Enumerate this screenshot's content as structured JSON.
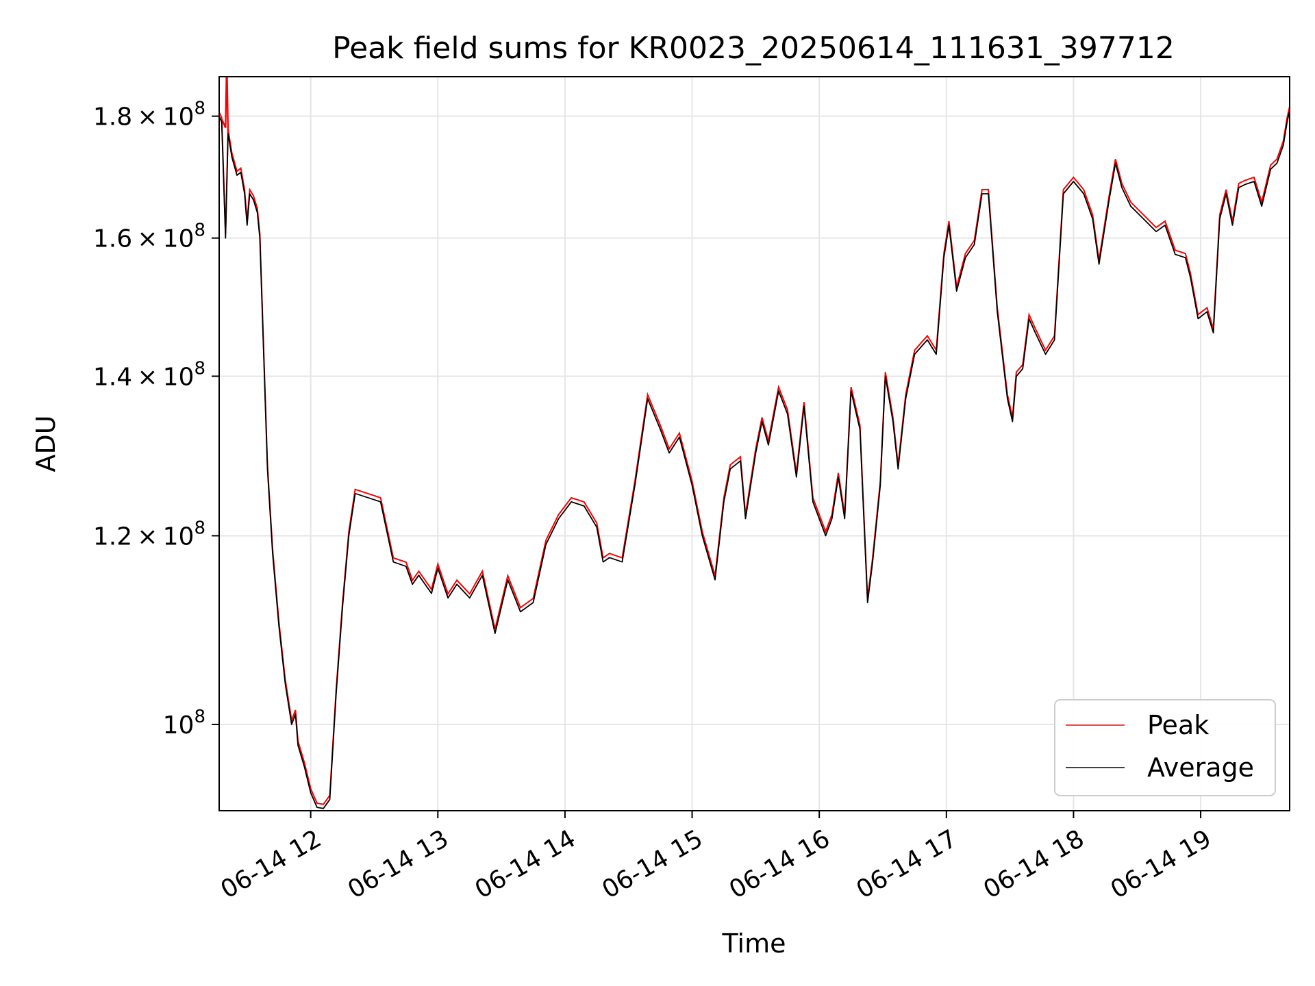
{
  "chart_data": {
    "type": "line",
    "title": "Peak field sums for KR0023_20250614_111631_397712",
    "xlabel": "Time",
    "ylabel": "ADU",
    "yscale": "log",
    "xlim_hours": [
      11.28,
      19.7
    ],
    "ylim": [
      92000000,
      187000000
    ],
    "grid": true,
    "legend_position": "lower right",
    "x_ticks": [
      {
        "label": "06-14 12",
        "hour": 12
      },
      {
        "label": "06-14 13",
        "hour": 13
      },
      {
        "label": "06-14 14",
        "hour": 14
      },
      {
        "label": "06-14 15",
        "hour": 15
      },
      {
        "label": "06-14 16",
        "hour": 16
      },
      {
        "label": "06-14 17",
        "hour": 17
      },
      {
        "label": "06-14 18",
        "hour": 18
      },
      {
        "label": "06-14 19",
        "hour": 19
      }
    ],
    "y_ticks": [
      {
        "value": 100000000,
        "mantissa": "",
        "times": "",
        "base": "10",
        "exponent": "8"
      },
      {
        "value": 120000000,
        "mantissa": "1.2",
        "times": "×",
        "base": "10",
        "exponent": "8"
      },
      {
        "value": 140000000,
        "mantissa": "1.4",
        "times": "×",
        "base": "10",
        "exponent": "8"
      },
      {
        "value": 160000000,
        "mantissa": "1.6",
        "times": "×",
        "base": "10",
        "exponent": "8"
      },
      {
        "value": 180000000,
        "mantissa": "1.8",
        "times": "×",
        "base": "10",
        "exponent": "8"
      }
    ],
    "series": [
      {
        "name": "Peak",
        "color": "#ff0000",
        "points": [
          [
            11.3,
            179.5
          ],
          [
            11.33,
            178
          ],
          [
            11.34,
            190
          ],
          [
            11.35,
            177
          ]
        ]
      },
      {
        "name": "Average",
        "color": "#000000",
        "points": [
          [
            11.28,
            180
          ],
          [
            11.3,
            179
          ],
          [
            11.33,
            160
          ],
          [
            11.35,
            177
          ],
          [
            11.38,
            173
          ],
          [
            11.42,
            170
          ],
          [
            11.45,
            170.5
          ],
          [
            11.48,
            167
          ],
          [
            11.5,
            162
          ],
          [
            11.52,
            167
          ],
          [
            11.55,
            166
          ],
          [
            11.58,
            164
          ],
          [
            11.6,
            160
          ],
          [
            11.63,
            143
          ],
          [
            11.66,
            128
          ],
          [
            11.7,
            118
          ],
          [
            11.75,
            110
          ],
          [
            11.8,
            104
          ],
          [
            11.85,
            100
          ],
          [
            11.88,
            101
          ],
          [
            11.9,
            98
          ],
          [
            11.95,
            96
          ],
          [
            12.0,
            93.6
          ],
          [
            12.05,
            92.3
          ],
          [
            12.1,
            92.2
          ],
          [
            12.15,
            93
          ],
          [
            12.2,
            103
          ],
          [
            12.25,
            112
          ],
          [
            12.3,
            120
          ],
          [
            12.35,
            125
          ],
          [
            12.45,
            124.5
          ],
          [
            12.55,
            124
          ],
          [
            12.65,
            117
          ],
          [
            12.75,
            116.5
          ],
          [
            12.8,
            114.5
          ],
          [
            12.85,
            115.5
          ],
          [
            12.95,
            113.5
          ],
          [
            13.0,
            116.3
          ],
          [
            13.08,
            113
          ],
          [
            13.15,
            114.5
          ],
          [
            13.25,
            113
          ],
          [
            13.35,
            115.5
          ],
          [
            13.45,
            109.2
          ],
          [
            13.55,
            115
          ],
          [
            13.65,
            111.5
          ],
          [
            13.75,
            112.5
          ],
          [
            13.85,
            119
          ],
          [
            13.95,
            122
          ],
          [
            14.05,
            124
          ],
          [
            14.15,
            123.5
          ],
          [
            14.25,
            121
          ],
          [
            14.3,
            117
          ],
          [
            14.35,
            117.5
          ],
          [
            14.45,
            117
          ],
          [
            14.55,
            126
          ],
          [
            14.65,
            137
          ],
          [
            14.75,
            133
          ],
          [
            14.82,
            130
          ],
          [
            14.9,
            132
          ],
          [
            15.0,
            126
          ],
          [
            15.08,
            120
          ],
          [
            15.18,
            115
          ],
          [
            15.25,
            124
          ],
          [
            15.3,
            128
          ],
          [
            15.38,
            129
          ],
          [
            15.42,
            122
          ],
          [
            15.5,
            130
          ],
          [
            15.55,
            134
          ],
          [
            15.6,
            131
          ],
          [
            15.68,
            138
          ],
          [
            15.75,
            135
          ],
          [
            15.82,
            127
          ],
          [
            15.88,
            136
          ],
          [
            15.95,
            124
          ],
          [
            16.05,
            120
          ],
          [
            16.1,
            122
          ],
          [
            16.15,
            127
          ],
          [
            16.2,
            122
          ],
          [
            16.25,
            138
          ],
          [
            16.32,
            133
          ],
          [
            16.38,
            112.5
          ],
          [
            16.42,
            117
          ],
          [
            16.48,
            126
          ],
          [
            16.52,
            140
          ],
          [
            16.58,
            134
          ],
          [
            16.62,
            128
          ],
          [
            16.68,
            137
          ],
          [
            16.75,
            143
          ],
          [
            16.85,
            145
          ],
          [
            16.92,
            143
          ],
          [
            16.98,
            157
          ],
          [
            17.02,
            162
          ],
          [
            17.08,
            152
          ],
          [
            17.15,
            157
          ],
          [
            17.22,
            159
          ],
          [
            17.28,
            167
          ],
          [
            17.33,
            167
          ],
          [
            17.4,
            149
          ],
          [
            17.48,
            137
          ],
          [
            17.52,
            134
          ],
          [
            17.55,
            140
          ],
          [
            17.6,
            141
          ],
          [
            17.65,
            148
          ],
          [
            17.7,
            146
          ],
          [
            17.78,
            143
          ],
          [
            17.85,
            145
          ],
          [
            17.92,
            167
          ],
          [
            18.0,
            169
          ],
          [
            18.08,
            167
          ],
          [
            18.15,
            163
          ],
          [
            18.2,
            156
          ],
          [
            18.28,
            166
          ],
          [
            18.33,
            172
          ],
          [
            18.38,
            168
          ],
          [
            18.45,
            165
          ],
          [
            18.55,
            163
          ],
          [
            18.65,
            161
          ],
          [
            18.72,
            162
          ],
          [
            18.8,
            157.5
          ],
          [
            18.88,
            157
          ],
          [
            18.92,
            154
          ],
          [
            18.98,
            148
          ],
          [
            19.05,
            149
          ],
          [
            19.1,
            146
          ],
          [
            19.15,
            163
          ],
          [
            19.2,
            167
          ],
          [
            19.25,
            162
          ],
          [
            19.3,
            168
          ],
          [
            19.35,
            168.5
          ],
          [
            19.42,
            169
          ],
          [
            19.48,
            165
          ],
          [
            19.55,
            171
          ],
          [
            19.6,
            172
          ],
          [
            19.65,
            175
          ],
          [
            19.68,
            179
          ],
          [
            19.7,
            181
          ]
        ]
      }
    ]
  }
}
